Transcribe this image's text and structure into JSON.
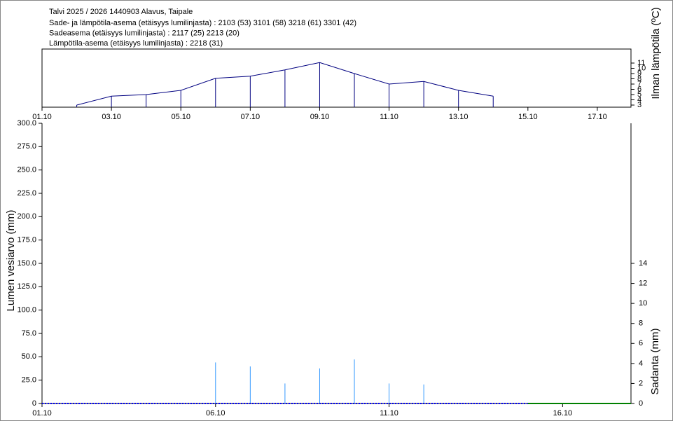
{
  "chart_data": [
    {
      "type": "line",
      "title": "Talvi 2025 / 2026 1440903 Alavus, Taipale",
      "subtitles": [
        "Sade- ja lämpötila-asema (etäisyys lumilinjasta) :  2103 (53) 3101 (58) 3218 (61) 3301 (42)",
        "Sadeasema (etäisyys lumilinjasta) :  2117 (25) 2213 (20)",
        "Lämpötila-asema (etäisyys lumilinjasta) :  2218 (31)"
      ],
      "y_label": "Ilman lämpötila (ºC)",
      "yaxis_side": "right",
      "xlim": [
        1,
        17.97
      ],
      "xticks": [
        {
          "value": 1,
          "label": "01.10"
        },
        {
          "value": 3,
          "label": "03.10"
        },
        {
          "value": 5,
          "label": "05.10"
        },
        {
          "value": 7,
          "label": "07.10"
        },
        {
          "value": 9,
          "label": "09.10"
        },
        {
          "value": 11,
          "label": "11.10"
        },
        {
          "value": 13,
          "label": "13.10"
        },
        {
          "value": 15,
          "label": "15.10"
        },
        {
          "value": 17,
          "label": "17.10"
        }
      ],
      "ylim": [
        2.6,
        13.67
      ],
      "yticks": [
        3,
        4,
        5,
        6,
        7,
        8,
        9,
        10,
        11
      ],
      "series": [
        {
          "color": "#000080",
          "stems": true,
          "x": [
            2,
            3,
            4,
            5,
            6,
            7,
            8,
            9,
            10,
            11,
            12,
            13,
            14
          ],
          "values": [
            3,
            4.7,
            5,
            5.8,
            8.1,
            8.5,
            9.7,
            11.1,
            9,
            7,
            7.5,
            5.8,
            4.7
          ]
        }
      ]
    },
    {
      "type": "combo",
      "y_label": "Lumen vesiarvo (mm)",
      "y2_label": "Sadanta (mm)",
      "xlim": [
        1,
        17.97
      ],
      "xticks": [
        {
          "value": 1,
          "label": "01.10"
        },
        {
          "value": 6,
          "label": "06.10"
        },
        {
          "value": 11,
          "label": "11.10"
        },
        {
          "value": 16,
          "label": "16.10"
        }
      ],
      "ylim": [
        0,
        300
      ],
      "yticks": [
        0,
        {
          "value": 25,
          "label": "25.0"
        },
        {
          "value": 50,
          "label": "50.0"
        },
        {
          "value": 75,
          "label": "75.0"
        },
        {
          "value": 100,
          "label": "100.0"
        },
        {
          "value": 125,
          "label": "125.0"
        },
        {
          "value": 150,
          "label": "150.0"
        },
        {
          "value": 175,
          "label": "175.0"
        },
        {
          "value": 200,
          "label": "200.0"
        },
        {
          "value": 225,
          "label": "225.0"
        },
        {
          "value": 250,
          "label": "250.0"
        },
        {
          "value": 275,
          "label": "275.0"
        },
        {
          "value": 300,
          "label": "300.0"
        }
      ],
      "y2lim": [
        0,
        28
      ],
      "y2ticks": [
        0,
        2,
        4,
        6,
        8,
        10,
        12,
        14
      ],
      "series": [
        {
          "type": "bar",
          "axis": "y2",
          "color": "#3399ff",
          "x": [
            6,
            7,
            8,
            9,
            10,
            11,
            12
          ],
          "values": [
            4.1,
            3.7,
            2.0,
            3.5,
            4.4,
            2.0,
            1.9
          ]
        },
        {
          "type": "line",
          "color": "#0000ff",
          "dashed": true,
          "x": [
            1,
            2,
            3,
            4,
            5,
            6,
            7,
            8,
            9,
            10,
            11,
            12,
            13,
            14,
            15
          ],
          "values": [
            0,
            0,
            0,
            0,
            0,
            0,
            0,
            0,
            0,
            0,
            0,
            0,
            0,
            0,
            0
          ]
        },
        {
          "type": "line",
          "color": "#008000",
          "x": [
            15,
            16,
            17,
            17.97
          ],
          "values": [
            0,
            0,
            0,
            0
          ]
        }
      ]
    }
  ]
}
